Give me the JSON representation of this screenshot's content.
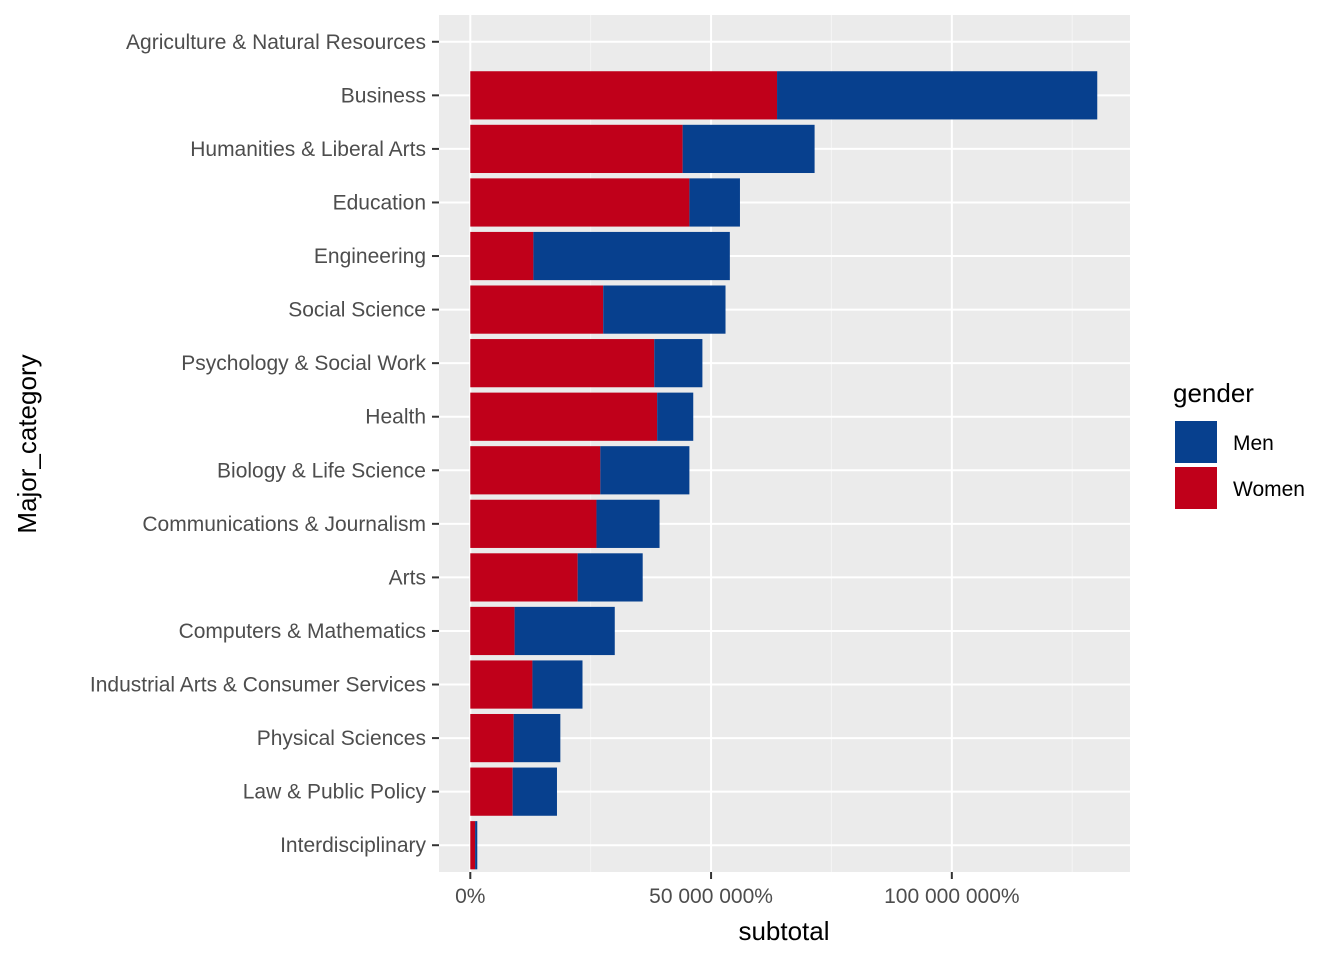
{
  "chart_data": {
    "type": "bar",
    "orientation": "horizontal",
    "stacked": true,
    "xlabel": "subtotal",
    "ylabel": "Major_category",
    "xlim": [
      -6500000,
      137000000
    ],
    "x_ticks": [
      {
        "value": 0,
        "label": "0%"
      },
      {
        "value": 50000000,
        "label": "50 000 000%"
      },
      {
        "value": 100000000,
        "label": "100 000 000%"
      }
    ],
    "x_minor_ticks": [
      25000000,
      75000000,
      125000000
    ],
    "categories": [
      "Agriculture & Natural Resources",
      "Business",
      "Humanities & Liberal Arts",
      "Education",
      "Engineering",
      "Social Science",
      "Psychology & Social Work",
      "Health",
      "Biology & Life Science",
      "Communications & Journalism",
      "Arts",
      "Computers & Mathematics",
      "Industrial Arts & Consumer Services",
      "Physical Sciences",
      "Law & Public Policy",
      "Interdisciplinary"
    ],
    "series": [
      {
        "name": "Women",
        "color": "#c0001a",
        "values": [
          0,
          63700000,
          44100000,
          45500000,
          13100000,
          27600000,
          38200000,
          38800000,
          27000000,
          26200000,
          22300000,
          9200000,
          12900000,
          9000000,
          8800000,
          1000000
        ]
      },
      {
        "name": "Men",
        "color": "#07408e",
        "values": [
          0,
          66500000,
          27400000,
          10500000,
          40800000,
          25400000,
          10000000,
          7500000,
          18500000,
          13100000,
          13500000,
          20800000,
          10400000,
          9700000,
          9200000,
          450000
        ]
      }
    ],
    "legend": {
      "title": "gender",
      "placement": "right",
      "entries": [
        "Men",
        "Women"
      ]
    }
  }
}
